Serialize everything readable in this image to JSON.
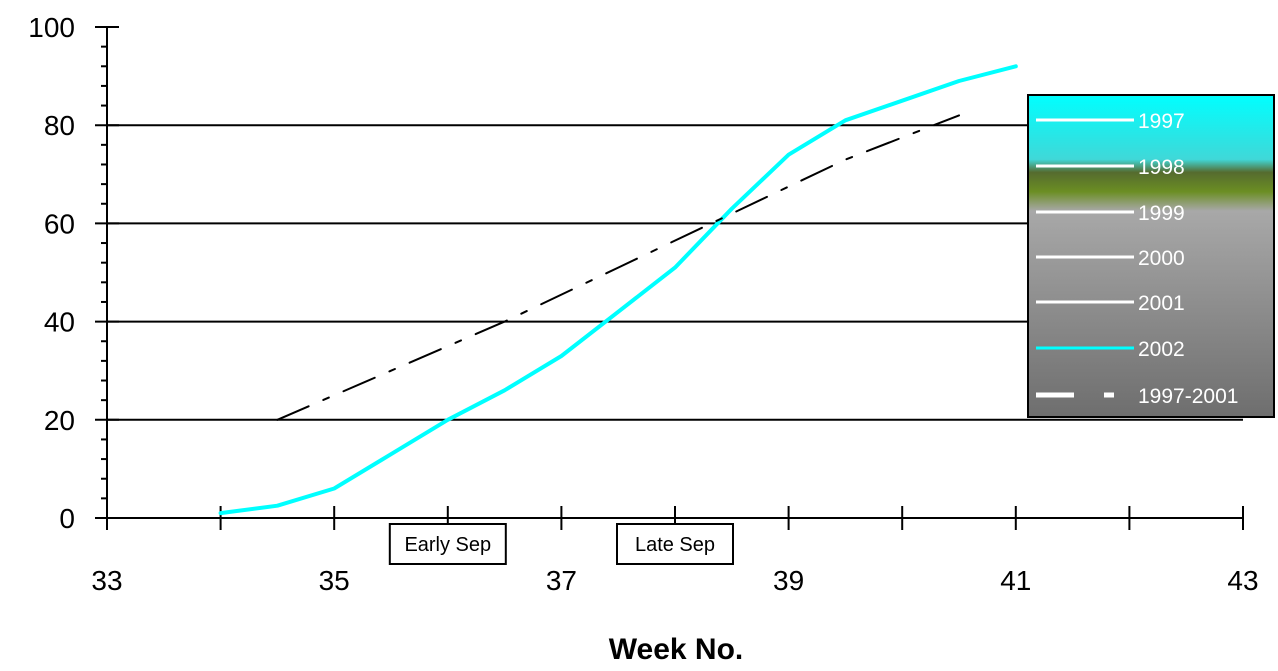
{
  "chart_data": {
    "type": "line",
    "xlabel": "Week No.",
    "ylabel": "",
    "xlim": [
      33,
      43
    ],
    "ylim": [
      0,
      100
    ],
    "x_ticks_major": [
      33,
      35,
      37,
      39,
      41,
      43
    ],
    "y_ticks_major": [
      0,
      20,
      40,
      60,
      80,
      100
    ],
    "grid": "horizontal",
    "legend_position": "right",
    "annotations": [
      {
        "text": "Early Sep",
        "x": 36
      },
      {
        "text": "Late Sep",
        "x": 38
      }
    ],
    "series": [
      {
        "name": "1997",
        "color": "#ffffff",
        "style": "solid",
        "values": []
      },
      {
        "name": "1998",
        "color": "#ffffff",
        "style": "solid",
        "values": []
      },
      {
        "name": "1999",
        "color": "#ffffff",
        "style": "solid",
        "values": []
      },
      {
        "name": "2000",
        "color": "#ffffff",
        "style": "solid",
        "values": []
      },
      {
        "name": "2001",
        "color": "#ffffff",
        "style": "solid",
        "values": []
      },
      {
        "name": "2002",
        "color": "#00ffff",
        "style": "solid",
        "points": [
          [
            34.0,
            1
          ],
          [
            34.5,
            2.5
          ],
          [
            35.0,
            6
          ],
          [
            35.5,
            13
          ],
          [
            36.0,
            20
          ],
          [
            36.5,
            26
          ],
          [
            37.0,
            33
          ],
          [
            37.5,
            42
          ],
          [
            38.0,
            51
          ],
          [
            38.5,
            63
          ],
          [
            39.0,
            74
          ],
          [
            39.5,
            81
          ],
          [
            40.0,
            85
          ],
          [
            40.5,
            89
          ],
          [
            41.0,
            92
          ]
        ]
      },
      {
        "name": "1997-2001",
        "color": "#000000",
        "style": "dash-dot",
        "points": [
          [
            34.5,
            20
          ],
          [
            35.5,
            30
          ],
          [
            36.5,
            40
          ],
          [
            37.5,
            51
          ],
          [
            38.5,
            62
          ],
          [
            39.5,
            73
          ],
          [
            40.5,
            82
          ]
        ]
      }
    ]
  }
}
